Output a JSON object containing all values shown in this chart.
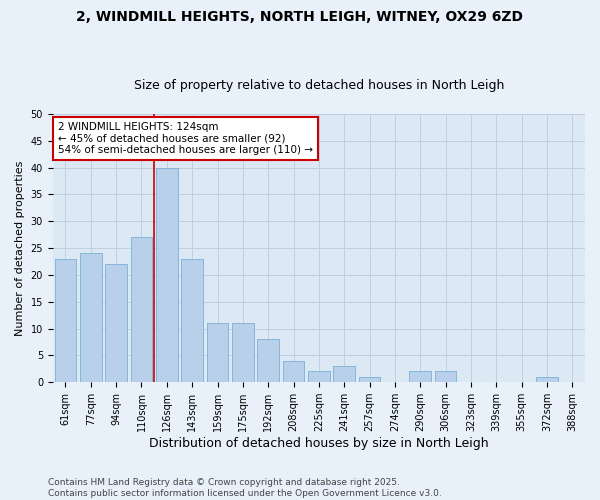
{
  "title": "2, WINDMILL HEIGHTS, NORTH LEIGH, WITNEY, OX29 6ZD",
  "subtitle": "Size of property relative to detached houses in North Leigh",
  "xlabel": "Distribution of detached houses by size in North Leigh",
  "ylabel": "Number of detached properties",
  "bar_labels": [
    "61sqm",
    "77sqm",
    "94sqm",
    "110sqm",
    "126sqm",
    "143sqm",
    "159sqm",
    "175sqm",
    "192sqm",
    "208sqm",
    "225sqm",
    "241sqm",
    "257sqm",
    "274sqm",
    "290sqm",
    "306sqm",
    "323sqm",
    "339sqm",
    "355sqm",
    "372sqm",
    "388sqm"
  ],
  "bar_values": [
    23,
    24,
    22,
    27,
    40,
    23,
    11,
    11,
    8,
    4,
    2,
    3,
    1,
    0,
    2,
    2,
    0,
    0,
    0,
    1,
    0
  ],
  "bar_color": "#b8d0ea",
  "bar_edge_color": "#7aafd4",
  "bg_color": "#dce9f5",
  "fig_bg_color": "#e8f0fa",
  "vline_color": "#cc0000",
  "annotation_text": "2 WINDMILL HEIGHTS: 124sqm\n← 45% of detached houses are smaller (92)\n54% of semi-detached houses are larger (110) →",
  "annotation_box_color": "#ffffff",
  "annotation_box_edge": "#cc0000",
  "footer": "Contains HM Land Registry data © Crown copyright and database right 2025.\nContains public sector information licensed under the Open Government Licence v3.0.",
  "ylim": [
    0,
    50
  ],
  "yticks": [
    0,
    5,
    10,
    15,
    20,
    25,
    30,
    35,
    40,
    45,
    50
  ],
  "grid_color": "#c0d0e0",
  "title_fontsize": 10,
  "subtitle_fontsize": 9,
  "xlabel_fontsize": 9,
  "ylabel_fontsize": 8,
  "tick_fontsize": 7,
  "annotation_fontsize": 7.5,
  "footer_fontsize": 6.5
}
